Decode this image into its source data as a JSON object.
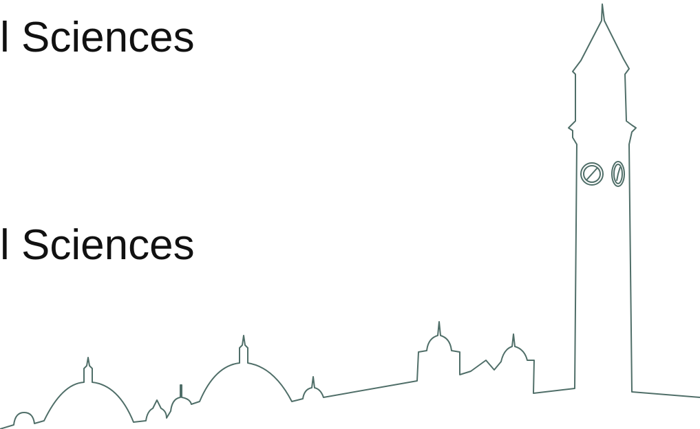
{
  "slide": {
    "title": "l Sciences",
    "subtitle": "l Sciences"
  }
}
